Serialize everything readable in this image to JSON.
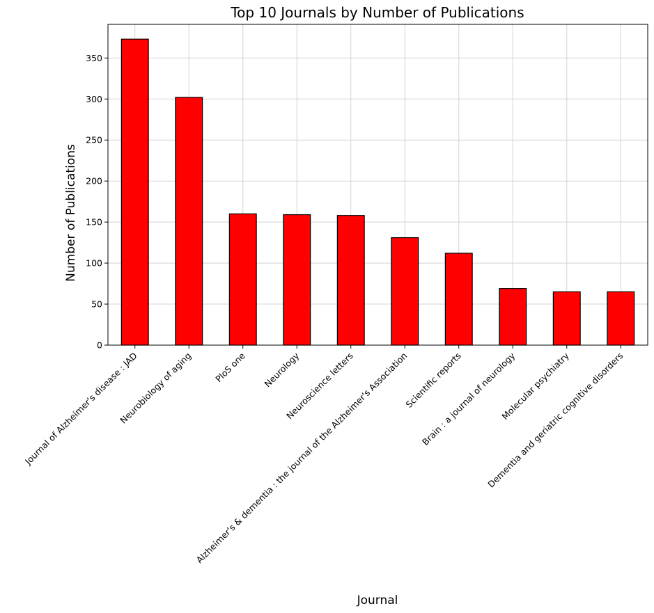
{
  "chart_data": {
    "type": "bar",
    "title": "Top 10 Journals by Number of Publications",
    "xlabel": "Journal",
    "ylabel": "Number of Publications",
    "categories": [
      "Journal of Alzheimer's disease : JAD",
      "Neurobiology of aging",
      "PloS one",
      "Neurology",
      "Neuroscience letters",
      "Alzheimer's & dementia : the journal of the Alzheimer's Association",
      "Scientific reports",
      "Brain : a journal of neurology",
      "Molecular psychiatry",
      "Dementia and geriatric cognitive disorders"
    ],
    "values": [
      373,
      302,
      160,
      159,
      158,
      131,
      112,
      69,
      65,
      65
    ],
    "ylim": [
      0,
      391
    ],
    "yticks": [
      0,
      50,
      100,
      150,
      200,
      250,
      300,
      350
    ],
    "grid": true,
    "bar_color": "#ff0000",
    "bar_edge_color": "#000000",
    "grid_color": "#d3d3d3"
  }
}
